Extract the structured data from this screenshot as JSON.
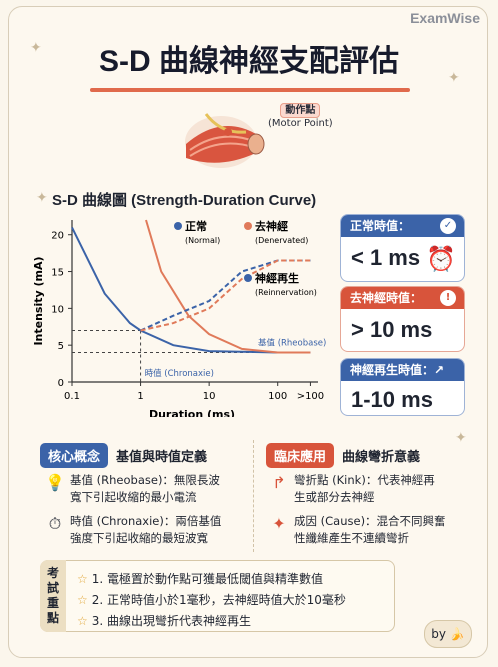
{
  "brand": "ExamWise",
  "title": "S-D 曲線神經支配評估",
  "motor_point": {
    "zh": "動作點",
    "en": "(Motor Point)"
  },
  "chart_heading": "S-D 曲線圖 (Strength-Duration Curve)",
  "chart_data": {
    "type": "line",
    "xlabel": "Duration (ms)",
    "ylabel": "Intensity (mA)",
    "x_ticks": [
      "0.1",
      "1",
      "10",
      "100",
      ">100"
    ],
    "y_ticks": [
      "0",
      "5",
      "10",
      "15",
      "20"
    ],
    "ylim": [
      0,
      22
    ],
    "series": [
      {
        "name": "正常",
        "name_en": "(Normal)",
        "color": "#3b63a8",
        "x": [
          0.1,
          0.3,
          0.7,
          1,
          3,
          10,
          100,
          300
        ],
        "y": [
          21,
          12,
          8,
          7,
          5,
          4.2,
          4,
          4
        ]
      },
      {
        "name": "去神經",
        "name_en": "(Denervated)",
        "color": "#e07a5a",
        "x": [
          1.2,
          2,
          5,
          10,
          30,
          100,
          300
        ],
        "y": [
          22,
          15,
          9,
          6.5,
          4.5,
          4,
          4
        ]
      },
      {
        "name": "神經再生",
        "name_en": "(Reinnervation)",
        "color": "#3b63a8",
        "x": [
          1,
          3,
          10,
          30,
          100,
          300
        ],
        "y": [
          7,
          9,
          11,
          15,
          16.5,
          16.5
        ],
        "dashed": true
      },
      {
        "name": "",
        "color": "#e07a5a",
        "x": [
          1,
          3,
          10,
          30,
          100,
          300
        ],
        "y": [
          7,
          8,
          10,
          14,
          16.5,
          16.5
        ],
        "dashed": true
      }
    ],
    "annotations": [
      {
        "text": "基值 (Rheobase)",
        "at": "right, y=4"
      },
      {
        "text": "時值 (Chronaxie)",
        "at": "x=1, y=0"
      }
    ],
    "legend": "top"
  },
  "info_cards": [
    {
      "header": "正常時值：",
      "value": "< 1 ms",
      "color": "#3b63a8"
    },
    {
      "header": "去神經時值：",
      "value": "> 10 ms",
      "color": "#d8543b"
    },
    {
      "header": "神經再生時值：↗",
      "value": "1-10 ms",
      "color": "#3b63a8"
    }
  ],
  "concepts": {
    "pill": "核心概念",
    "heading": "基值與時值定義",
    "items": [
      {
        "icon": "lightbulb-icon",
        "glyph": "💡",
        "text1": "基值 (Rheobase)：無限長波",
        "text2": "寬下引起收縮的最小電流"
      },
      {
        "icon": "stopwatch-icon",
        "glyph": "⏱",
        "text1": "時值 (Chronaxie)：兩倍基值",
        "text2": "強度下引起收縮的最短波寬"
      }
    ]
  },
  "clinical": {
    "pill": "臨床應用",
    "heading": "曲線彎折意義",
    "items": [
      {
        "icon": "kink-arrow-icon",
        "glyph": "↱",
        "text1": "彎折點 (Kink)：代表神經再",
        "text2": "生或部分去神經"
      },
      {
        "icon": "muscle-icon",
        "glyph": "✦",
        "text1": "成因 (Cause)：混合不同興奮",
        "text2": "性纖維產生不連續彎折"
      }
    ]
  },
  "exam_points": {
    "tag": "考試重點",
    "items": [
      "1. 電極置於動作點可獲最低閾值與精準數值",
      "2. 正常時值小於1毫秒，去神經時值大於10毫秒",
      "3. 曲線出現彎折代表神經再生"
    ]
  },
  "by_badge": "by 🍌"
}
